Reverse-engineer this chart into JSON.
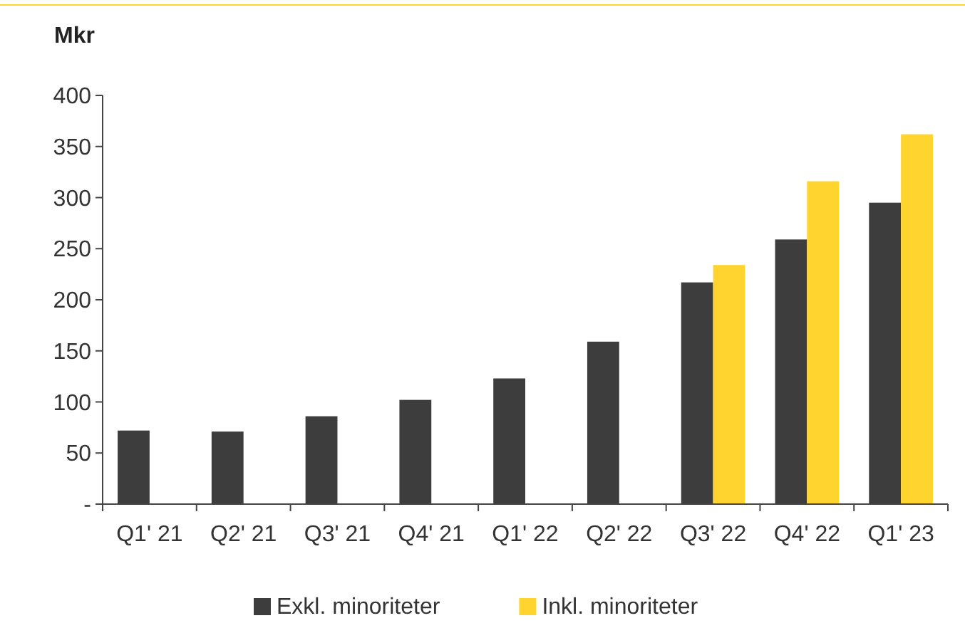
{
  "chart_data": {
    "type": "bar",
    "ylabel": "Mkr",
    "categories": [
      "Q1' 21",
      "Q2' 21",
      "Q3' 21",
      "Q4' 21",
      "Q1' 22",
      "Q2' 22",
      "Q3' 22",
      "Q4' 22",
      "Q1' 23"
    ],
    "series": [
      {
        "name": "Exkl. minoriteter",
        "color": "#3d3d3d",
        "values": [
          72,
          71,
          86,
          102,
          123,
          159,
          217,
          259,
          295
        ]
      },
      {
        "name": "Inkl. minoriteter",
        "color": "#ffd42e",
        "values": [
          null,
          null,
          null,
          null,
          null,
          null,
          234,
          316,
          362
        ]
      }
    ],
    "ylim": [
      0,
      400
    ],
    "yticks": [
      {
        "value": 0,
        "label": "-"
      },
      50,
      100,
      150,
      200,
      250,
      300,
      350,
      400
    ],
    "grid": false,
    "legend": "bottom"
  }
}
